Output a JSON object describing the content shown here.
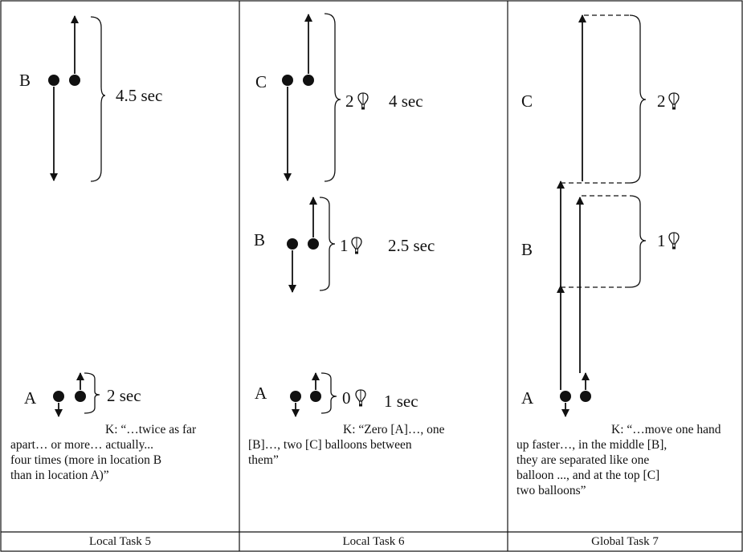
{
  "panels": [
    {
      "caption": "Local Task 5",
      "labels": {
        "B": "B",
        "A": "A"
      },
      "measures": {
        "B": "4.5 sec",
        "A": "2 sec"
      },
      "quote": [
        "K: “…twice as far",
        "apart… or more… actually...",
        "four times (more in location B",
        "than in location A)”"
      ]
    },
    {
      "caption": "Local Task 6",
      "labels": {
        "C": "C",
        "B": "B",
        "A": "A"
      },
      "balloons": {
        "C": "2",
        "B": "1",
        "A": "0"
      },
      "times": {
        "C": "4 sec",
        "B": "2.5 sec",
        "A": "1 sec"
      },
      "quote": [
        "K: “Zero [A]…, one",
        "[B]…,  two [C] balloons between",
        "them”"
      ]
    },
    {
      "caption": "Global Task 7",
      "labels": {
        "C": "C",
        "B": "B",
        "A": "A"
      },
      "balloons": {
        "C": "2",
        "B": "1"
      },
      "quote": [
        "K: “…move one hand",
        "up faster…, in the middle [B],",
        "they are separated like one",
        "balloon ..., and at the top [C]",
        "two balloons”"
      ]
    }
  ]
}
